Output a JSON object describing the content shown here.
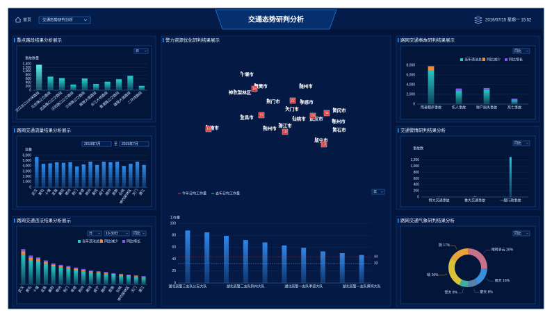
{
  "header": {
    "home": "首页",
    "menu": "交通态势研判分析",
    "title": "交通态势研判分析",
    "datetime": "2019/07/15 星期一 15:52"
  },
  "map": {
    "cities": [
      "十堰市",
      "襄樊市",
      "神农架林区",
      "随州市",
      "荆门市",
      "孝感市",
      "宜昌市",
      "天门市",
      "仙桃市",
      "武汉市",
      "黄冈市",
      "鄂州市",
      "恩施市",
      "荆州市",
      "潜江市",
      "黄石市",
      "咸宁市"
    ],
    "markers": [
      15,
      22,
      15,
      20,
      34,
      18,
      16,
      13
    ]
  },
  "chart_data": [
    {
      "type": "bar",
      "title": "重点路段结果分析展示",
      "filter": "日",
      "y_label": "事故数量",
      "color": "#27d3cf",
      "categories": [
        "汉口出口100米路段",
        "北京路立交路段",
        "武昌路口立交路段",
        "汉阳路口立交路段",
        "沙湖路立交路段",
        "解放大道路段",
        "长江大桥路段",
        "黄浦路立交路段",
        "雄楚大道路段",
        "二环线路段"
      ],
      "values": [
        1350,
        720,
        640,
        300,
        620,
        330,
        450,
        580,
        760,
        230
      ],
      "ylim": [
        0,
        1400
      ],
      "yticks": [
        0,
        200,
        400,
        600,
        800,
        {
          "value": 1000,
          "label": "1,000"
        },
        {
          "value": 1200,
          "label": "1,200"
        },
        {
          "value": 1400,
          "label": "1,400"
        }
      ]
    },
    {
      "type": "bar",
      "title": "路网交通流量结果分析展示",
      "date_from": "2019年7月",
      "date_sep": "至",
      "date_to": "2019年7月",
      "y_label": "流量",
      "color": "#2f8ef0",
      "categories": [
        "武汉",
        "黄石",
        "十堰",
        "宜昌",
        "襄阳",
        "鄂州",
        "荆门",
        "孝感",
        "荆州",
        "黄冈",
        "咸宁",
        "随州",
        "恩施",
        "仙桃",
        "神农架林区",
        "天门",
        "潜江"
      ],
      "values": [
        5700,
        4400,
        4500,
        4700,
        4600,
        4700,
        3900,
        4300,
        4800,
        4200,
        4800,
        4700,
        4800,
        4000,
        4400,
        4800,
        4200
      ],
      "ylim": [
        0,
        6000
      ],
      "yticks": [
        0,
        {
          "value": 1000,
          "label": "1,000"
        },
        {
          "value": 2000,
          "label": "2,000"
        },
        {
          "value": 3000,
          "label": "3,000"
        },
        {
          "value": 4000,
          "label": "4,000"
        },
        {
          "value": 5000,
          "label": "5,000"
        },
        {
          "value": 6000,
          "label": "6,000"
        }
      ]
    },
    {
      "type": "stacked_bar",
      "title": "路网交通违法结果分析展示",
      "filters": [
        "日",
        "10-30分",
        "同比"
      ],
      "categories": [
        "武汉",
        "黄石",
        "十堰",
        "宜昌",
        "襄阳",
        "鄂州",
        "荆门",
        "孝感",
        "荆州",
        "黄冈",
        "咸宁",
        "随州",
        "恩施",
        "仙桃",
        "神农架林区",
        "天门",
        "潜江"
      ],
      "series": [
        {
          "name": "当年违法总量",
          "color": "#27c9c3",
          "values": [
            80,
            65,
            62,
            55,
            48,
            45,
            42,
            38,
            35,
            32,
            30,
            28,
            26,
            24,
            22,
            20,
            18
          ]
        },
        {
          "name": "同比减少",
          "color": "#f08a3c",
          "values": [
            8,
            7,
            6,
            5,
            5,
            4,
            4,
            4,
            3,
            3,
            3,
            3,
            2,
            2,
            2,
            2,
            2
          ]
        },
        {
          "name": "同比增长",
          "color": "#7e5cf0",
          "values": [
            6,
            5,
            4,
            4,
            3,
            3,
            3,
            3,
            3,
            2,
            2,
            2,
            2,
            2,
            2,
            2,
            2
          ]
        }
      ],
      "ylim": [
        0,
        100
      ]
    },
    {
      "type": "bar",
      "title": "警力资源优化研判结果展示",
      "filter": "日",
      "y_label": "工作量",
      "color": "#2f86e8",
      "categories": [
        "湖北高警三支队公安大队",
        null,
        null,
        "湖北高警二支队荆州大队",
        null,
        null,
        "湖北高警一支队孝感大队",
        null,
        null,
        "湖北高警一支队黄冈大队"
      ],
      "values": [
        88,
        85,
        79,
        72,
        68,
        63,
        59,
        53,
        50,
        47
      ],
      "ylim": [
        0,
        100
      ],
      "yticks": [
        0,
        20,
        40,
        60,
        80,
        100
      ],
      "reference_lines": [
        {
          "name": "今年日均工作量",
          "color": "#e0403a",
          "value": 44
        },
        {
          "name": "去年日均工作量",
          "color": "#3bd16f",
          "value": 33
        }
      ]
    },
    {
      "type": "stacked_bar",
      "title": "路网交通事故研判结果展示",
      "filter": "同比",
      "categories": [
        "简易程序事故",
        "伤人事故",
        "财产损失事故",
        "死亡事故"
      ],
      "series": [
        {
          "name": "当年违法总量",
          "color": "#27c9c3",
          "values": [
            7000,
            2700,
            2900,
            800
          ]
        },
        {
          "name": "同比减少",
          "color": "#f08a3c",
          "values": [
            800,
            0,
            0,
            0
          ]
        },
        {
          "name": "同比增长",
          "color": "#7e5cf0",
          "values": [
            0,
            500,
            400,
            300
          ]
        }
      ],
      "ylim": [
        0,
        8000
      ],
      "yticks": [
        0,
        {
          "value": 2000,
          "label": "2,000"
        },
        {
          "value": 4000,
          "label": "4,000"
        },
        {
          "value": 6000,
          "label": "6,000"
        },
        {
          "value": 8000,
          "label": "8,000"
        }
      ]
    },
    {
      "type": "bar",
      "title": "交通警情研判结果分析",
      "filter": "同比",
      "y_label": "事故数",
      "color": "#27c9e3",
      "categories": [
        "特大交通事故",
        "重大交通事故",
        "一般行政事故"
      ],
      "values": [
        10,
        20,
        1300
      ],
      "ylim": [
        0,
        1400
      ],
      "yticks": [
        0,
        200,
        400,
        600,
        800,
        {
          "value": 1000,
          "label": "1,000"
        },
        {
          "value": 1200,
          "label": "1,200"
        }
      ]
    },
    {
      "type": "pie",
      "title": "路网交通气象研判结果分析",
      "filter": "同比",
      "categories": [
        "晴转多云",
        "雨天",
        "雾天",
        "雪天",
        "晴",
        "阴"
      ],
      "values": [
        26,
        16,
        8,
        8,
        26,
        17
      ],
      "value_labels": [
        "26%",
        "16%",
        "8%",
        "8%",
        "26%",
        "17%"
      ],
      "colors": [
        "#c9708a",
        "#3a8fd8",
        "#5a7fa8",
        "#3fb0a0",
        "#d8c23a",
        "#e8a33a"
      ]
    }
  ]
}
